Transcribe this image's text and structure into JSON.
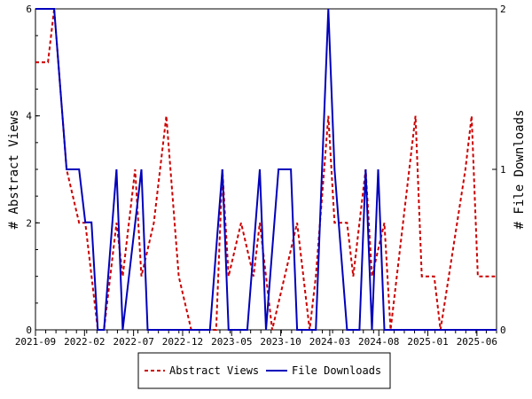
{
  "chart_data": {
    "type": "line",
    "x_tick_labels": [
      "2021-09",
      "2022-02",
      "2022-07",
      "2022-12",
      "2023-05",
      "2023-10",
      "2024-03",
      "2024-08",
      "2025-01",
      "2025-06"
    ],
    "left_axis": {
      "label": "# Abstract Views",
      "ylim": [
        0,
        6
      ],
      "ticks": [
        "0",
        "2",
        "4",
        "6"
      ]
    },
    "right_axis": {
      "label": "# File Downloads",
      "ylim": [
        0,
        2
      ],
      "ticks": [
        "0",
        "1",
        "2"
      ]
    },
    "series": [
      {
        "name": "Abstract Views",
        "axis": "left",
        "color": "#cc0000",
        "style": "dashed",
        "points": [
          [
            0,
            5
          ],
          [
            2,
            5
          ],
          [
            3,
            6
          ],
          [
            5,
            3
          ],
          [
            7,
            2
          ],
          [
            8,
            2
          ],
          [
            10,
            0
          ],
          [
            11,
            0
          ],
          [
            13,
            2
          ],
          [
            14,
            1
          ],
          [
            15,
            2
          ],
          [
            16,
            3
          ],
          [
            17,
            1
          ],
          [
            19,
            2
          ],
          [
            21,
            4
          ],
          [
            23,
            1
          ],
          [
            25,
            0
          ],
          [
            26,
            0
          ],
          [
            27,
            0
          ],
          [
            28,
            0
          ],
          [
            29,
            0
          ],
          [
            30,
            3
          ],
          [
            31,
            1
          ],
          [
            33,
            2
          ],
          [
            35,
            1
          ],
          [
            36,
            2
          ],
          [
            38,
            0
          ],
          [
            40,
            1
          ],
          [
            42,
            2
          ],
          [
            44,
            0
          ],
          [
            45,
            1
          ],
          [
            47,
            4
          ],
          [
            48,
            2
          ],
          [
            49,
            2
          ],
          [
            50,
            2
          ],
          [
            51,
            1
          ],
          [
            53,
            3
          ],
          [
            54,
            1
          ],
          [
            56,
            2
          ],
          [
            57,
            0
          ],
          [
            61,
            4
          ],
          [
            62,
            1
          ],
          [
            63,
            1
          ],
          [
            64,
            1
          ],
          [
            65,
            0
          ],
          [
            69,
            3
          ],
          [
            70,
            4
          ],
          [
            71,
            1
          ],
          [
            72,
            1
          ],
          [
            73,
            1
          ],
          [
            74,
            1
          ]
        ]
      },
      {
        "name": "File Downloads",
        "axis": "right",
        "color": "#0000bb",
        "style": "solid",
        "points": [
          [
            0,
            2
          ],
          [
            3,
            2
          ],
          [
            5,
            1
          ],
          [
            7,
            1
          ],
          [
            8,
            0.67
          ],
          [
            9,
            0.67
          ],
          [
            10,
            0
          ],
          [
            11,
            0
          ],
          [
            13,
            1
          ],
          [
            14,
            0
          ],
          [
            17,
            1
          ],
          [
            18,
            0
          ],
          [
            24,
            0
          ],
          [
            27,
            0
          ],
          [
            28,
            0
          ],
          [
            30,
            1
          ],
          [
            31,
            0
          ],
          [
            33,
            0
          ],
          [
            34,
            0
          ],
          [
            36,
            1
          ],
          [
            37,
            0
          ],
          [
            39,
            1
          ],
          [
            41,
            1
          ],
          [
            42,
            0
          ],
          [
            43,
            0
          ],
          [
            44,
            0
          ],
          [
            45,
            0
          ],
          [
            46,
            1
          ],
          [
            47,
            2
          ],
          [
            48,
            1
          ],
          [
            50,
            0
          ],
          [
            51,
            0
          ],
          [
            52,
            0
          ],
          [
            53,
            1
          ],
          [
            54,
            0
          ],
          [
            55,
            1
          ],
          [
            56,
            0
          ],
          [
            57,
            0
          ],
          [
            58,
            0
          ],
          [
            74,
            0
          ]
        ]
      }
    ],
    "x_range": [
      0,
      74
    ],
    "x_tick_positions": [
      0,
      8.3,
      16.6,
      24.9,
      33.2,
      41.5,
      49.8,
      58.1,
      66.4,
      74.7
    ],
    "legend": {
      "placement": "bottom-center",
      "entries": [
        "Abstract Views",
        "File Downloads"
      ]
    },
    "grid": false
  }
}
